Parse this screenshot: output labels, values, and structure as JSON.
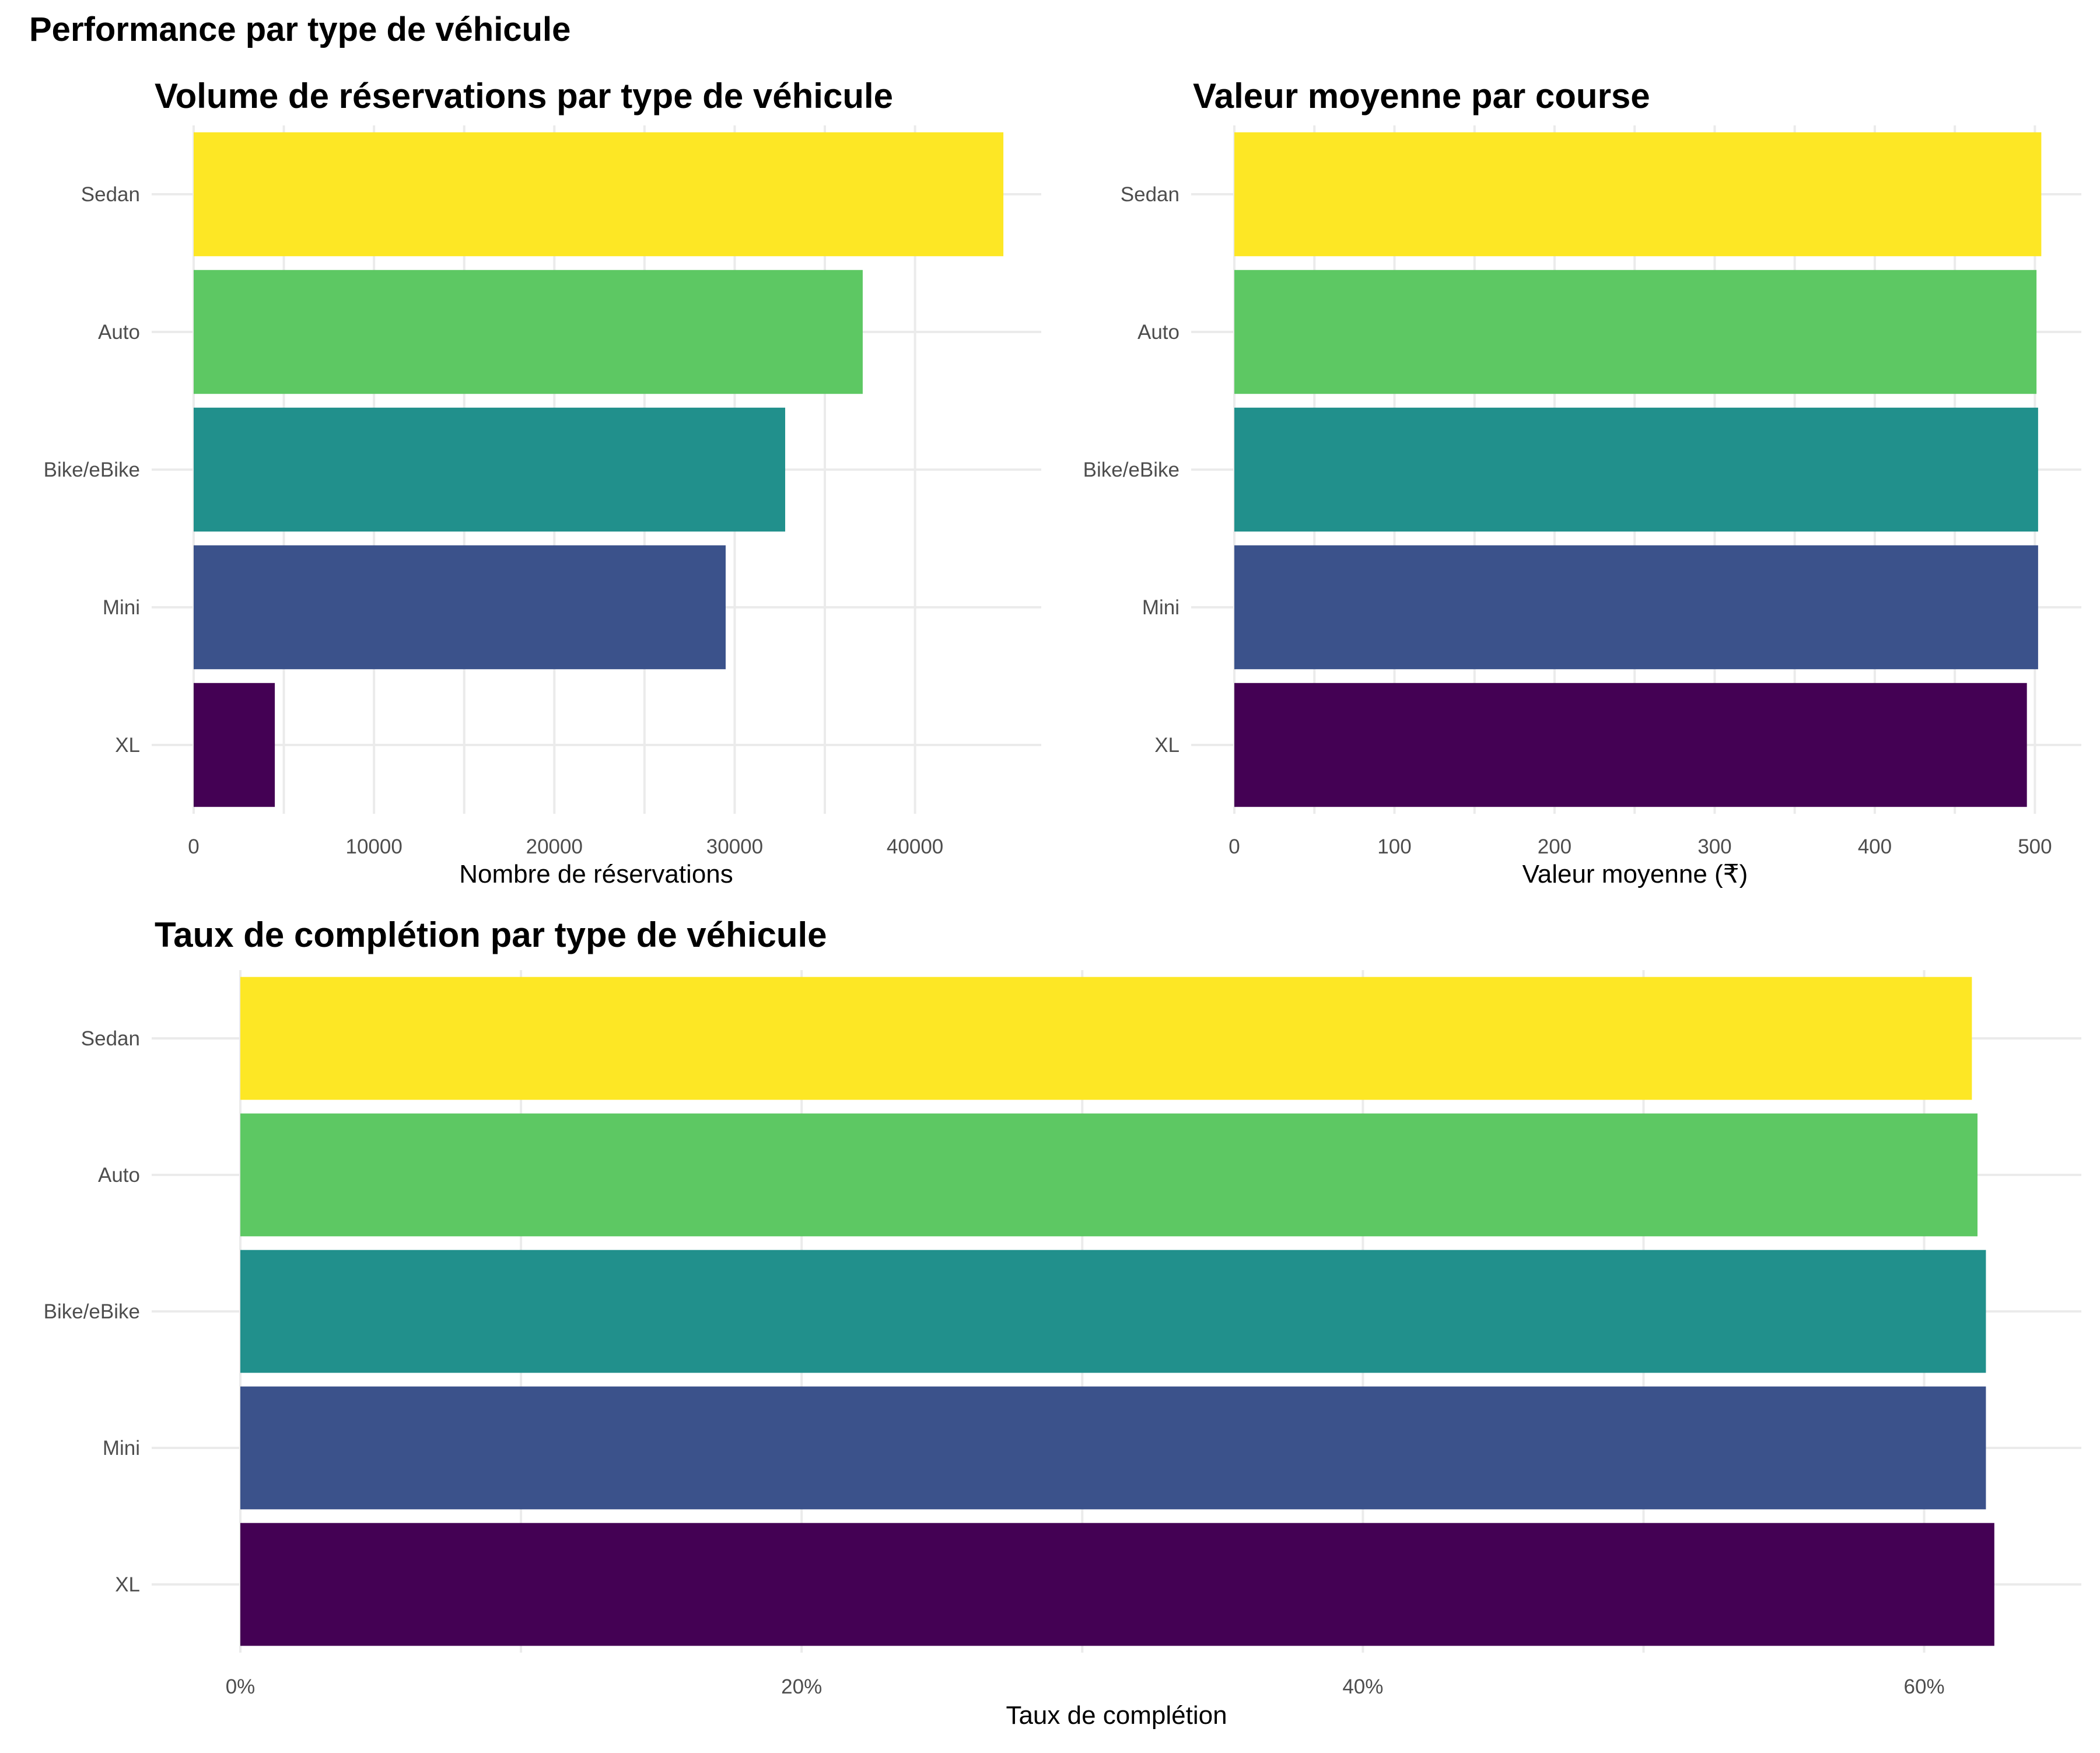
{
  "main_title": "Performance par type de véhicule",
  "chart_data": [
    {
      "type": "bar",
      "orientation": "horizontal",
      "title": "Volume de réservations par type de véhicule",
      "xlabel": "Nombre de réservations",
      "ylabel": "",
      "categories": [
        "XL",
        "Mini",
        "Bike/eBike",
        "Auto",
        "Sedan"
      ],
      "values": [
        4500,
        29500,
        32800,
        37100,
        44900
      ],
      "colors": [
        "#440154",
        "#3B528B",
        "#21908C",
        "#5DC863",
        "#FDE725"
      ],
      "xlim": [
        0,
        47000
      ],
      "ticks": [
        0,
        10000,
        20000,
        30000,
        40000
      ],
      "tick_labels": [
        "0",
        "10000",
        "20000",
        "30000",
        "40000"
      ],
      "grid": true,
      "legend": "none"
    },
    {
      "type": "bar",
      "orientation": "horizontal",
      "title": "Valeur moyenne par course",
      "xlabel": "Valeur moyenne (₹)",
      "ylabel": "",
      "categories": [
        "XL",
        "Mini",
        "Bike/eBike",
        "Auto",
        "Sedan"
      ],
      "values": [
        495,
        502,
        502,
        501,
        504
      ],
      "colors": [
        "#440154",
        "#3B528B",
        "#21908C",
        "#5DC863",
        "#FDE725"
      ],
      "xlim": [
        0,
        529
      ],
      "ticks": [
        0,
        100,
        200,
        300,
        400,
        500
      ],
      "tick_labels": [
        "0",
        "100",
        "200",
        "300",
        "400",
        "500"
      ],
      "grid": true,
      "legend": "none"
    },
    {
      "type": "bar",
      "orientation": "horizontal",
      "title": "Taux de complétion par type de véhicule",
      "xlabel": "Taux de complétion",
      "ylabel": "",
      "categories": [
        "XL",
        "Mini",
        "Bike/eBike",
        "Auto",
        "Sedan"
      ],
      "values": [
        0.625,
        0.622,
        0.622,
        0.619,
        0.617
      ],
      "colors": [
        "#440154",
        "#3B528B",
        "#21908C",
        "#5DC863",
        "#FDE725"
      ],
      "xlim": [
        0,
        0.656
      ],
      "ticks": [
        0,
        0.2,
        0.4,
        0.6
      ],
      "tick_labels": [
        "0%",
        "20%",
        "40%",
        "60%"
      ],
      "grid": true,
      "legend": "none"
    }
  ]
}
